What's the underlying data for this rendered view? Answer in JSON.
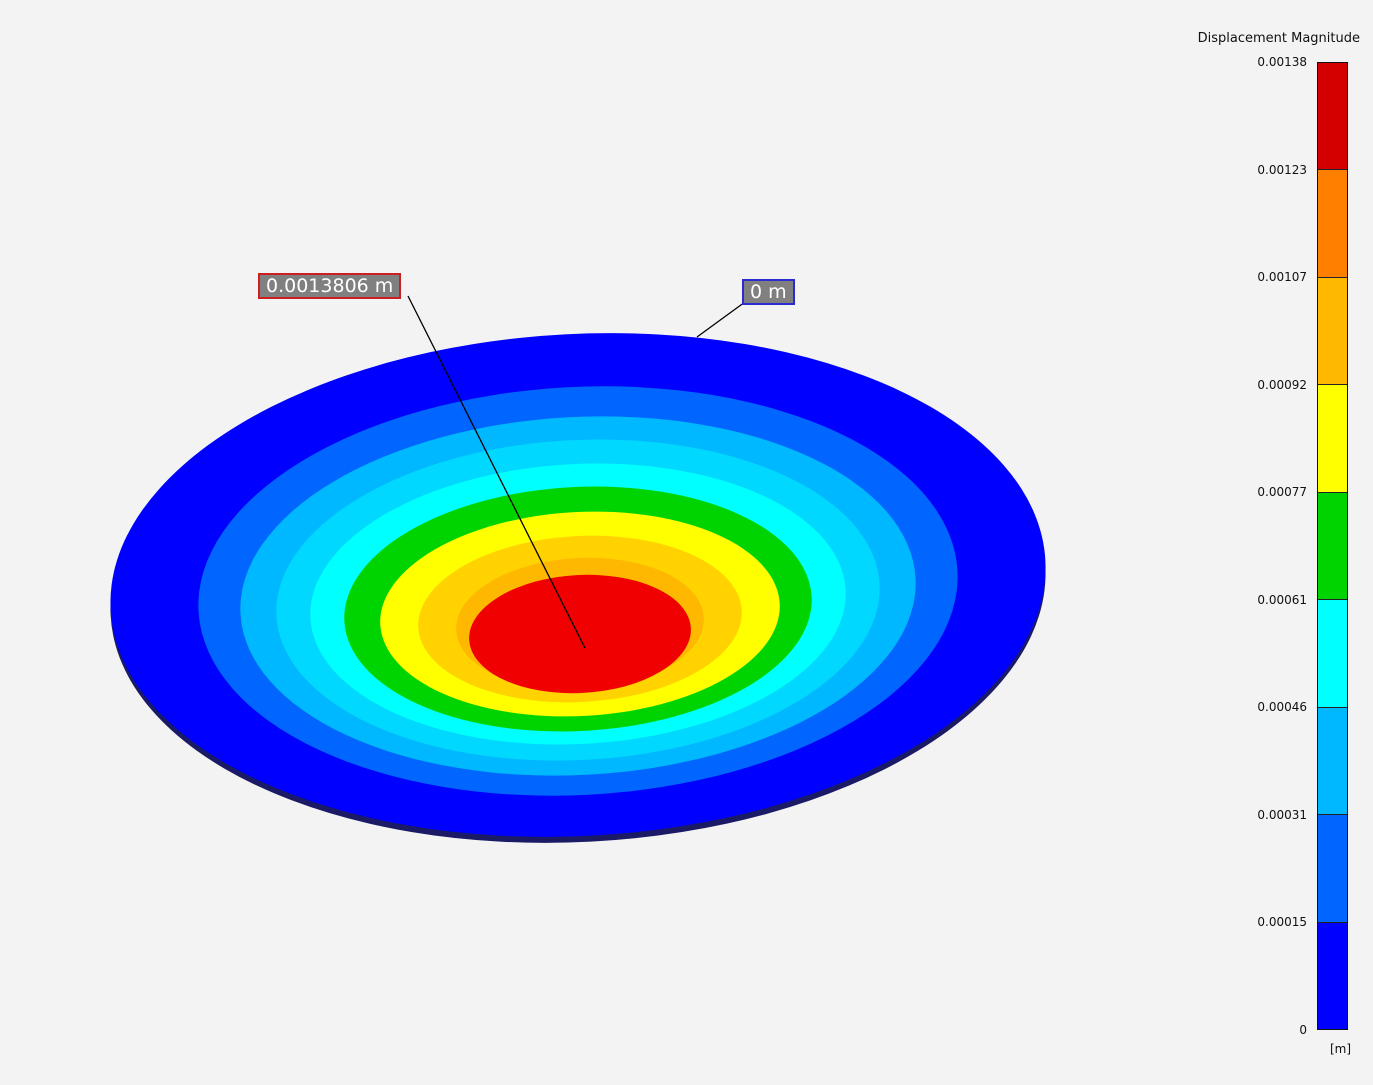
{
  "legend": {
    "title": "Displacement Magnitude",
    "unit": "[m]",
    "ticks": [
      "0.00138",
      "0.00123",
      "0.00107",
      "0.00092",
      "0.00077",
      "0.00061",
      "0.00046",
      "0.00031",
      "0.00015",
      "0"
    ],
    "band_colors_top_to_bottom": [
      "#d40000",
      "#ff7f00",
      "#ffb800",
      "#ffff00",
      "#00d400",
      "#00ffff",
      "#00b8ff",
      "#0066ff",
      "#0000ff"
    ]
  },
  "probes": {
    "max_label": "0.0013806 m",
    "min_label": "0 m",
    "max_border_color": "#cc1f1f",
    "min_border_color": "#2b2bd0"
  },
  "plot": {
    "contour_colors_outer_to_inner": [
      "#0000ff",
      "#0066ff",
      "#00b8ff",
      "#00d8ff",
      "#00ffff",
      "#00d400",
      "#ffff00",
      "#ffd200",
      "#ffb800",
      "#ff7f00",
      "#f00000"
    ]
  }
}
